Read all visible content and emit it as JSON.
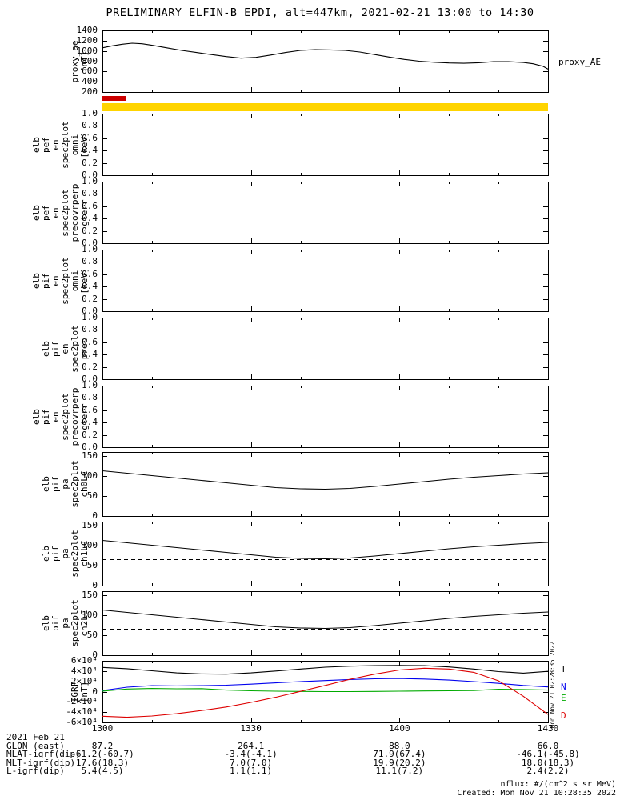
{
  "title": "PRELIMINARY ELFIN-B EPDI, alt=447km, 2021-02-21 13:00 to 14:30",
  "right_labels": {
    "proxy_ae": "proxy_AE"
  },
  "x_axis": {
    "range_min": [
      0,
      90
    ],
    "ticks_min": [
      0,
      30,
      60,
      90
    ],
    "minor_step_min": 10,
    "labels": [
      "1300",
      "1330",
      "1400",
      "1430"
    ]
  },
  "bars": [
    {
      "name": "red-segment-bar",
      "color": "#cc0000",
      "x0_min": 0,
      "x1_min": 4.8
    },
    {
      "name": "yellow-full-bar",
      "color": "#ffd400",
      "x0_min": 0,
      "x1_min": 90
    }
  ],
  "legend": [
    {
      "label": "T",
      "color": "#000000"
    },
    {
      "label": "N",
      "color": "#0000ee"
    },
    {
      "label": "E",
      "color": "#00aa00"
    },
    {
      "label": "D",
      "color": "#dd0000"
    }
  ],
  "footer": {
    "date_label": "2021 Feb 21",
    "rows": [
      {
        "label": "GLON (east)",
        "values": [
          "87.2",
          "264.1",
          "88.0",
          "66.0"
        ]
      },
      {
        "label": "MLAT-igrf(dip)",
        "values": [
          "-61.2(-60.7)",
          "-3.4(-4.1)",
          "71.9(67.4)",
          "-46.1(-45.8)"
        ]
      },
      {
        "label": "MLT-igrf(dip)",
        "values": [
          "17.6(18.3)",
          "7.0(7.0)",
          "19.9(20.2)",
          "18.0(18.3)"
        ]
      },
      {
        "label": "L-igrf(dip)",
        "values": [
          "5.4(4.5)",
          "1.1(1.1)",
          "11.1(7.2)",
          "2.4(2.2)"
        ]
      }
    ]
  },
  "notes": {
    "nflux": "nflux: #/(cm^2 s sr MeV)",
    "created": "Created: Mon Nov 21 10:28:35 2022",
    "side_timestamp": "Mon Nov 21 02:28:35 2022"
  },
  "chart_data": [
    {
      "id": "proxy_ae",
      "type": "line",
      "ylabel_lines": [
        "proxy_ae",
        "[nT]"
      ],
      "ylim": [
        200,
        1400
      ],
      "yticks": [
        200,
        400,
        600,
        800,
        1000,
        1200,
        1400
      ],
      "ytick_labels": [
        "200",
        "400",
        "600",
        "800",
        "1000",
        "1200",
        "1400"
      ],
      "series": [
        {
          "name": "proxy_AE",
          "color": "#000000",
          "dash": false,
          "x": [
            0,
            2,
            4,
            6,
            8,
            10,
            13,
            16,
            19,
            22,
            25,
            28,
            31,
            34,
            37,
            40,
            43,
            46,
            49,
            52,
            55,
            58,
            61,
            64,
            67,
            70,
            73,
            76,
            79,
            82,
            85,
            87,
            89,
            90
          ],
          "y": [
            1060,
            1100,
            1130,
            1150,
            1140,
            1110,
            1060,
            1010,
            970,
            930,
            890,
            860,
            875,
            920,
            970,
            1010,
            1025,
            1020,
            1010,
            980,
            930,
            880,
            835,
            800,
            780,
            765,
            760,
            770,
            790,
            790,
            775,
            750,
            700,
            645
          ]
        }
      ]
    },
    {
      "id": "elb_pef_en_spec2plot_omni",
      "type": "heatmap",
      "ylabel_lines": [
        "elb",
        "pef",
        "en",
        "spec2plot",
        "omni",
        "[keV]"
      ],
      "ylim": [
        0,
        1
      ],
      "yticks": [
        0,
        0.2,
        0.4,
        0.6,
        0.8,
        1.0
      ],
      "ytick_labels": [
        "0.0",
        "0.2",
        "0.4",
        "0.6",
        "0.8",
        "1.0"
      ],
      "series": []
    },
    {
      "id": "elb_pef_en_spec2plot_precovrperp_gterr",
      "type": "heatmap",
      "ylabel_lines": [
        "elb",
        "pef",
        "en",
        "spec2plot",
        "precovrperp",
        "gterr"
      ],
      "ylim": [
        0,
        1
      ],
      "yticks": [
        0,
        0.2,
        0.4,
        0.6,
        0.8,
        1.0
      ],
      "ytick_labels": [
        "0.0",
        "0.2",
        "0.4",
        "0.6",
        "0.8",
        "1.0"
      ],
      "series": []
    },
    {
      "id": "elb_pif_en_spec2plot_omni",
      "type": "heatmap",
      "ylabel_lines": [
        "elb",
        "pif",
        "en",
        "spec2plot",
        "omni",
        "[keV]"
      ],
      "ylim": [
        0,
        1
      ],
      "yticks": [
        0,
        0.2,
        0.4,
        0.6,
        0.8,
        1.0
      ],
      "ytick_labels": [
        "0.0",
        "0.2",
        "0.4",
        "0.6",
        "0.8",
        "1.0"
      ],
      "series": []
    },
    {
      "id": "elb_pif_en_spec2plot_prec",
      "type": "heatmap",
      "ylabel_lines": [
        "elb",
        "pif",
        "en",
        "spec2plot",
        "prec"
      ],
      "ylim": [
        0,
        1
      ],
      "yticks": [
        0,
        0.2,
        0.4,
        0.6,
        0.8,
        1.0
      ],
      "ytick_labels": [
        "0.0",
        "0.2",
        "0.4",
        "0.6",
        "0.8",
        "1.0"
      ],
      "series": []
    },
    {
      "id": "elb_pif_en_spec2plot_precovrperp_gterr",
      "type": "heatmap",
      "ylabel_lines": [
        "elb",
        "pif",
        "en",
        "spec2plot",
        "precovrperp",
        "gterr"
      ],
      "ylim": [
        0,
        1
      ],
      "yticks": [
        0,
        0.2,
        0.4,
        0.6,
        0.8,
        1.0
      ],
      "ytick_labels": [
        "0.0",
        "0.2",
        "0.4",
        "0.6",
        "0.8",
        "1.0"
      ],
      "series": []
    },
    {
      "id": "elb_pif_pa_spec2plot_ch0LC",
      "type": "line",
      "ylabel_lines": [
        "elb",
        "pif",
        "pa",
        "spec2plot",
        "ch0LC"
      ],
      "ylim": [
        0,
        160
      ],
      "yticks": [
        0,
        50,
        100,
        150
      ],
      "ytick_labels": [
        "0",
        "50",
        "100",
        "150"
      ],
      "series": [
        {
          "name": "loss-cone-ch0",
          "color": "#000000",
          "dash": false,
          "x": [
            0,
            5,
            10,
            15,
            20,
            25,
            30,
            35,
            40,
            45,
            50,
            55,
            60,
            65,
            70,
            75,
            80,
            85,
            90
          ],
          "y": [
            113,
            107,
            101,
            95,
            89,
            83,
            77,
            71,
            68,
            67,
            69,
            74,
            80,
            86,
            92,
            97,
            101,
            105,
            108
          ]
        },
        {
          "name": "antiloss-cone-ch0",
          "color": "#000000",
          "dash": true,
          "x": [
            0,
            90
          ],
          "y": [
            65,
            65
          ]
        }
      ]
    },
    {
      "id": "elb_pif_pa_spec2plot_ch1LC",
      "type": "line",
      "ylabel_lines": [
        "elb",
        "pif",
        "pa",
        "spec2plot",
        "ch1LC"
      ],
      "ylim": [
        0,
        160
      ],
      "yticks": [
        0,
        50,
        100,
        150
      ],
      "ytick_labels": [
        "0",
        "50",
        "100",
        "150"
      ],
      "series": [
        {
          "name": "loss-cone-ch1",
          "color": "#000000",
          "dash": false,
          "x": [
            0,
            5,
            10,
            15,
            20,
            25,
            30,
            35,
            40,
            45,
            50,
            55,
            60,
            65,
            70,
            75,
            80,
            85,
            90
          ],
          "y": [
            113,
            107,
            101,
            95,
            89,
            83,
            77,
            71,
            68,
            67,
            69,
            74,
            80,
            86,
            92,
            97,
            101,
            105,
            108
          ]
        },
        {
          "name": "antiloss-cone-ch1",
          "color": "#000000",
          "dash": true,
          "x": [
            0,
            90
          ],
          "y": [
            65,
            65
          ]
        }
      ]
    },
    {
      "id": "elb_pif_pa_spec2plot_ch2LC",
      "type": "line",
      "ylabel_lines": [
        "elb",
        "pif",
        "pa",
        "spec2plot",
        "ch2LC"
      ],
      "ylim": [
        0,
        160
      ],
      "yticks": [
        0,
        50,
        100,
        150
      ],
      "ytick_labels": [
        "0",
        "50",
        "100",
        "150"
      ],
      "series": [
        {
          "name": "loss-cone-ch2",
          "color": "#000000",
          "dash": false,
          "x": [
            0,
            5,
            10,
            15,
            20,
            25,
            30,
            35,
            40,
            45,
            50,
            55,
            60,
            65,
            70,
            75,
            80,
            85,
            90
          ],
          "y": [
            113,
            107,
            101,
            95,
            89,
            83,
            77,
            71,
            68,
            67,
            69,
            74,
            80,
            86,
            92,
            97,
            101,
            105,
            108
          ]
        },
        {
          "name": "antiloss-cone-ch2",
          "color": "#000000",
          "dash": true,
          "x": [
            0,
            90
          ],
          "y": [
            65,
            65
          ]
        }
      ]
    },
    {
      "id": "igrf",
      "type": "line",
      "ylabel_lines": [
        "IGRF",
        "[nT]"
      ],
      "ylim": [
        -60000,
        60000
      ],
      "yticks": [
        -60000,
        -40000,
        -20000,
        0,
        20000,
        40000,
        60000
      ],
      "ytick_labels": [
        "-6×10⁴",
        "-4×10⁴",
        "-2×10⁴",
        "0",
        "2×10⁴",
        "4×10⁴",
        "6×10⁴"
      ],
      "series": [
        {
          "name": "T",
          "color": "#000000",
          "dash": false,
          "x": [
            0,
            5,
            10,
            15,
            20,
            25,
            30,
            35,
            40,
            45,
            50,
            55,
            60,
            65,
            70,
            75,
            80,
            85,
            90
          ],
          "y": [
            47000,
            44500,
            40500,
            36500,
            34500,
            34000,
            36500,
            40000,
            44000,
            47500,
            49500,
            50500,
            51000,
            50500,
            48000,
            44000,
            39000,
            36000,
            39500
          ]
        },
        {
          "name": "N",
          "color": "#0000ee",
          "dash": false,
          "x": [
            0,
            5,
            10,
            15,
            20,
            25,
            30,
            35,
            40,
            45,
            50,
            55,
            60,
            65,
            70,
            75,
            80,
            85,
            90
          ],
          "y": [
            2000,
            8500,
            11500,
            11000,
            11500,
            12500,
            14500,
            17000,
            19500,
            21500,
            23500,
            25000,
            25500,
            24500,
            22500,
            19500,
            16000,
            12000,
            9000
          ]
        },
        {
          "name": "E",
          "color": "#00aa00",
          "dash": false,
          "x": [
            0,
            5,
            10,
            15,
            20,
            25,
            30,
            35,
            40,
            45,
            50,
            55,
            60,
            65,
            70,
            75,
            80,
            85,
            90
          ],
          "y": [
            1000,
            5000,
            6000,
            5500,
            5800,
            3000,
            1500,
            800,
            300,
            0,
            0,
            300,
            800,
            1200,
            1500,
            2000,
            4500,
            4000,
            3000
          ]
        },
        {
          "name": "D",
          "color": "#dd0000",
          "dash": false,
          "x": [
            0,
            5,
            10,
            15,
            20,
            25,
            30,
            35,
            40,
            45,
            50,
            55,
            60,
            65,
            70,
            75,
            80,
            85,
            90
          ],
          "y": [
            -48000,
            -50000,
            -47500,
            -43000,
            -37000,
            -30000,
            -21000,
            -11000,
            500,
            12000,
            24000,
            34000,
            42000,
            45500,
            44000,
            37500,
            21000,
            -9000,
            -44500
          ]
        }
      ]
    }
  ]
}
